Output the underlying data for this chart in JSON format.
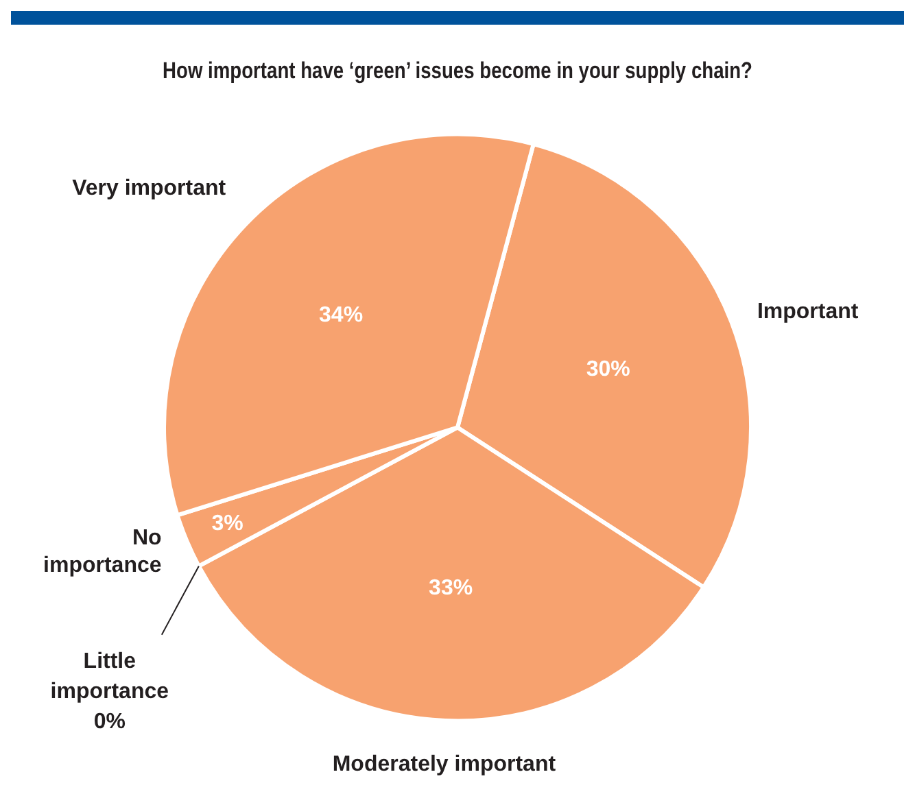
{
  "chart_data": {
    "type": "pie",
    "title": "How important have ‘green’ issues become in your supply chain?",
    "categories": [
      "Important",
      "Moderately important",
      "Little importance",
      "No importance",
      "Very important"
    ],
    "values": [
      30,
      33,
      0,
      3,
      34
    ],
    "colors": [
      "#f7a26f",
      "#f7a26f",
      "#f7a26f",
      "#f7a26f",
      "#f7a26f"
    ],
    "value_labels": [
      "30%",
      "33%",
      "0%",
      "3%",
      "34%"
    ],
    "legend": false
  }
}
